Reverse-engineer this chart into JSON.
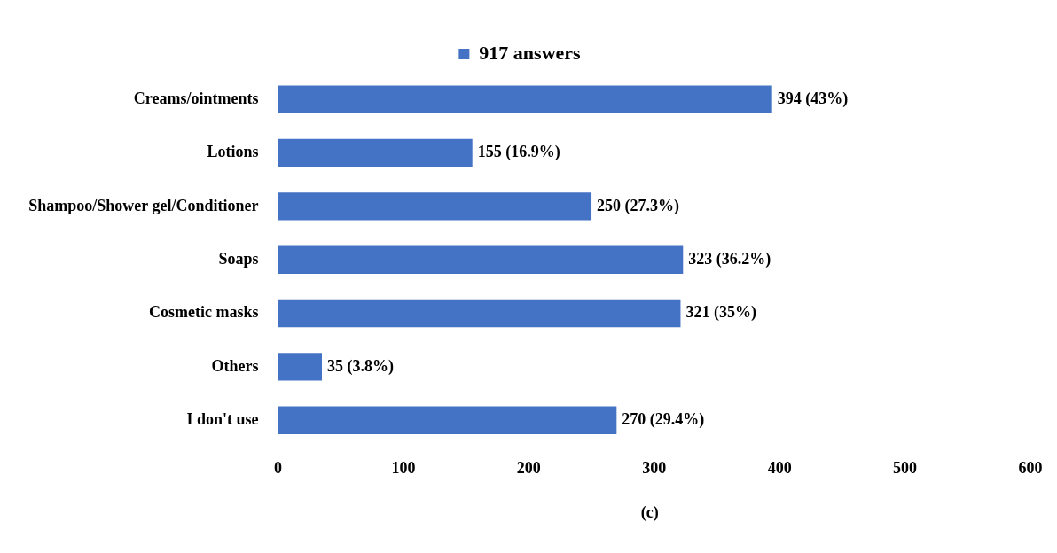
{
  "chart_data": {
    "type": "bar",
    "orientation": "horizontal",
    "categories": [
      "Creams/ointments",
      "Lotions",
      "Shampoo/Shower gel/Conditioner",
      "Soaps",
      "Cosmetic masks",
      "Others",
      "I don't use"
    ],
    "series": [
      {
        "name": "917 answers",
        "color": "#4472c4",
        "values": [
          394,
          155,
          250,
          323,
          321,
          35,
          270
        ],
        "value_labels": [
          "394 (43%)",
          "155 (16.9%)",
          "250 (27.3%)",
          "323 (36.2%)",
          "321 (35%)",
          "35 (3.8%)",
          "270 (29.4%)"
        ]
      }
    ],
    "xlim": [
      0,
      600
    ],
    "xticks": [
      0,
      100,
      200,
      300,
      400,
      500,
      600
    ],
    "grid": false,
    "legend": "top",
    "annotations": [
      "(c)"
    ]
  }
}
